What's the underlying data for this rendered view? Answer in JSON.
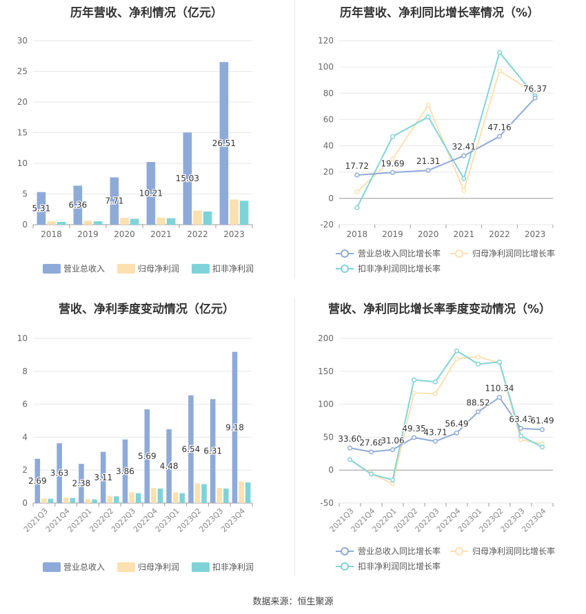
{
  "source_label": "数据来源：恒生聚源",
  "colors": {
    "revenue": "#8eaad8",
    "netprofit": "#fde0b0",
    "deducted": "#7fd3d8",
    "axis": "#666666",
    "grid": "#e6e6e6"
  },
  "chart_data": [
    {
      "type": "bar",
      "title": "历年营收、净利情况（亿元）",
      "categories": [
        "2018",
        "2019",
        "2020",
        "2021",
        "2022",
        "2023"
      ],
      "ylim": [
        0,
        30
      ],
      "yticks": [
        0,
        5,
        10,
        15,
        20,
        25,
        30
      ],
      "series": [
        {
          "name": "营业总收入",
          "values": [
            5.31,
            6.36,
            7.71,
            10.21,
            15.03,
            26.51
          ],
          "labels": [
            "5.31",
            "6.36",
            "7.71",
            "10.21",
            "15.03",
            "26.51"
          ]
        },
        {
          "name": "归母净利润",
          "values": [
            0.55,
            0.65,
            1.1,
            1.15,
            2.3,
            4.1
          ]
        },
        {
          "name": "扣非净利润",
          "values": [
            0.45,
            0.55,
            0.95,
            1.05,
            2.15,
            3.9
          ]
        }
      ]
    },
    {
      "type": "line",
      "title": "历年营收、净利同比增长率情况（%）",
      "categories": [
        "2018",
        "2019",
        "2020",
        "2021",
        "2022",
        "2023"
      ],
      "ylim": [
        -20,
        120
      ],
      "yticks": [
        -20,
        0,
        20,
        40,
        60,
        80,
        100,
        120
      ],
      "series": [
        {
          "name": "营业总收入同比增长率",
          "values": [
            17.72,
            19.69,
            21.31,
            32.41,
            47.16,
            76.37
          ],
          "labels": [
            "17.72",
            "19.69",
            "21.31",
            "32.41",
            "47.16",
            "76.37"
          ]
        },
        {
          "name": "归母净利润同比增长率",
          "values": [
            5,
            30,
            71,
            6,
            97,
            80
          ]
        },
        {
          "name": "扣非净利润同比增长率",
          "values": [
            -7,
            47,
            62,
            15,
            111,
            78
          ]
        }
      ]
    },
    {
      "type": "bar",
      "title": "营收、净利季度变动情况（亿元）",
      "categories": [
        "2021Q3",
        "2021Q4",
        "2022Q1",
        "2022Q2",
        "2022Q3",
        "2022Q4",
        "2023Q1",
        "2023Q2",
        "2023Q3",
        "2023Q4"
      ],
      "ylim": [
        0,
        10
      ],
      "yticks": [
        0,
        2,
        4,
        6,
        8,
        10
      ],
      "series": [
        {
          "name": "营业总收入",
          "values": [
            2.69,
            3.63,
            2.38,
            3.11,
            3.86,
            5.69,
            4.48,
            6.54,
            6.31,
            9.18
          ],
          "labels": [
            "2.69",
            "3.63",
            "2.38",
            "3.11",
            "3.86",
            "5.69",
            "4.48",
            "6.54",
            "6.31",
            "9.18"
          ]
        },
        {
          "name": "归母净利润",
          "values": [
            0.28,
            0.33,
            0.24,
            0.43,
            0.65,
            0.92,
            0.65,
            1.2,
            0.92,
            1.3
          ]
        },
        {
          "name": "扣非净利润",
          "values": [
            0.26,
            0.31,
            0.22,
            0.41,
            0.6,
            0.88,
            0.6,
            1.15,
            0.88,
            1.25
          ]
        }
      ]
    },
    {
      "type": "line",
      "title": "营收、净利同比增长率季度变动情况（%）",
      "categories": [
        "2021Q3",
        "2021Q4",
        "2022Q1",
        "2022Q2",
        "2022Q3",
        "2022Q4",
        "2023Q1",
        "2023Q2",
        "2023Q3",
        "2023Q4"
      ],
      "ylim": [
        -50,
        200
      ],
      "yticks": [
        -50,
        0,
        50,
        100,
        150,
        200
      ],
      "series": [
        {
          "name": "营业总收入同比增长率",
          "values": [
            33.6,
            27.68,
            31.06,
            49.35,
            43.71,
            56.49,
            88.52,
            110.34,
            63.43,
            61.49
          ],
          "labels": [
            "33.60",
            "27.68",
            "31.06",
            "49.35",
            "43.71",
            "56.49",
            "88.52",
            "110.34",
            "63.43",
            "61.49"
          ]
        },
        {
          "name": "归母净利润同比增长率",
          "values": [
            16,
            -5,
            -21,
            117,
            116,
            169,
            172,
            163,
            46,
            40
          ]
        },
        {
          "name": "扣非净利润同比增长率",
          "values": [
            16,
            -6,
            -15,
            137,
            134,
            181,
            161,
            164,
            52,
            35
          ]
        }
      ]
    }
  ]
}
